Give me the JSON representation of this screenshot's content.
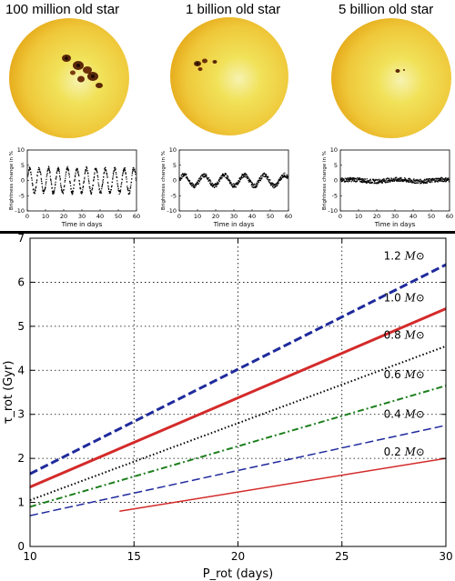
{
  "stars": [
    {
      "title": "100 million old star",
      "ylabel": "Brightness change in %",
      "xlabel": "Time in days",
      "xticks": [
        "0",
        "10",
        "20",
        "30",
        "40",
        "50",
        "60"
      ],
      "yticks": [
        "10",
        "5",
        "0",
        "-5",
        "-10"
      ],
      "spots": "large",
      "lightcurve": {
        "amplitude_pct": 4,
        "period_days": 5.2,
        "noise_pct": 0.6
      }
    },
    {
      "title": "1 billion old star",
      "ylabel": "Brightness change in %",
      "xlabel": "Time in days",
      "xticks": [
        "0",
        "10",
        "20",
        "30",
        "40",
        "50",
        "60"
      ],
      "yticks": [
        "10",
        "5",
        "0",
        "-5",
        "-10"
      ],
      "spots": "medium",
      "lightcurve": {
        "amplitude_pct": 1.8,
        "period_days": 11,
        "noise_pct": 0.7
      }
    },
    {
      "title": "5 billion old star",
      "ylabel": "Brightness change in %",
      "xlabel": "Time in days",
      "xticks": [
        "0",
        "10",
        "20",
        "30",
        "40",
        "50",
        "60"
      ],
      "yticks": [
        "10",
        "5",
        "0",
        "-5",
        "-10"
      ],
      "spots": "small",
      "lightcurve": {
        "amplitude_pct": 0.3,
        "period_days": 25,
        "noise_pct": 0.7
      }
    }
  ],
  "chart_data": {
    "type": "line",
    "xlabel": "P_rot (days)",
    "ylabel": "τ_rot (Gyr)",
    "xlim": [
      10,
      30
    ],
    "ylim": [
      0,
      7
    ],
    "xticks": [
      "10",
      "15",
      "20",
      "25",
      "30"
    ],
    "yticks": [
      "0",
      "1",
      "2",
      "3",
      "4",
      "5",
      "6",
      "7"
    ],
    "grid": true,
    "series": [
      {
        "name": "1.2 M⊙",
        "x": [
          10,
          30
        ],
        "y": [
          1.65,
          6.4
        ],
        "color": "#1f2a9c",
        "style": "dashed",
        "width": 3
      },
      {
        "name": "1.0 M⊙",
        "x": [
          10,
          30
        ],
        "y": [
          1.35,
          5.4
        ],
        "color": "#d42a2a",
        "style": "solid",
        "width": 3
      },
      {
        "name": "0.8 M⊙",
        "x": [
          10,
          30
        ],
        "y": [
          1.05,
          4.55
        ],
        "color": "#000000",
        "style": "dotted",
        "width": 2
      },
      {
        "name": "0.6 M⊙",
        "x": [
          10,
          30
        ],
        "y": [
          0.9,
          3.65
        ],
        "color": "#1d7f1d",
        "style": "dashdot",
        "width": 2
      },
      {
        "name": "0.4 M⊙",
        "x": [
          10,
          30
        ],
        "y": [
          0.7,
          2.75
        ],
        "color": "#1f2a9c",
        "style": "dashed",
        "width": 1.5
      },
      {
        "name": "0.2 M⊙",
        "x": [
          14.3,
          30
        ],
        "y": [
          0.8,
          2.0
        ],
        "color": "#d42a2a",
        "style": "solid",
        "width": 1.5
      }
    ],
    "line_labels": [
      {
        "text": "1.2",
        "unit": "M⊙",
        "x": 28.0,
        "y": 6.6
      },
      {
        "text": "1.0",
        "unit": "M⊙",
        "x": 28.0,
        "y": 5.65
      },
      {
        "text": "0.8",
        "unit": "M⊙",
        "x": 28.0,
        "y": 4.8
      },
      {
        "text": "0.6",
        "unit": "M⊙",
        "x": 28.0,
        "y": 3.9
      },
      {
        "text": "0.4",
        "unit": "M⊙",
        "x": 28.0,
        "y": 3.0
      },
      {
        "text": "0.2",
        "unit": "M⊙",
        "x": 28.0,
        "y": 2.15
      }
    ]
  }
}
